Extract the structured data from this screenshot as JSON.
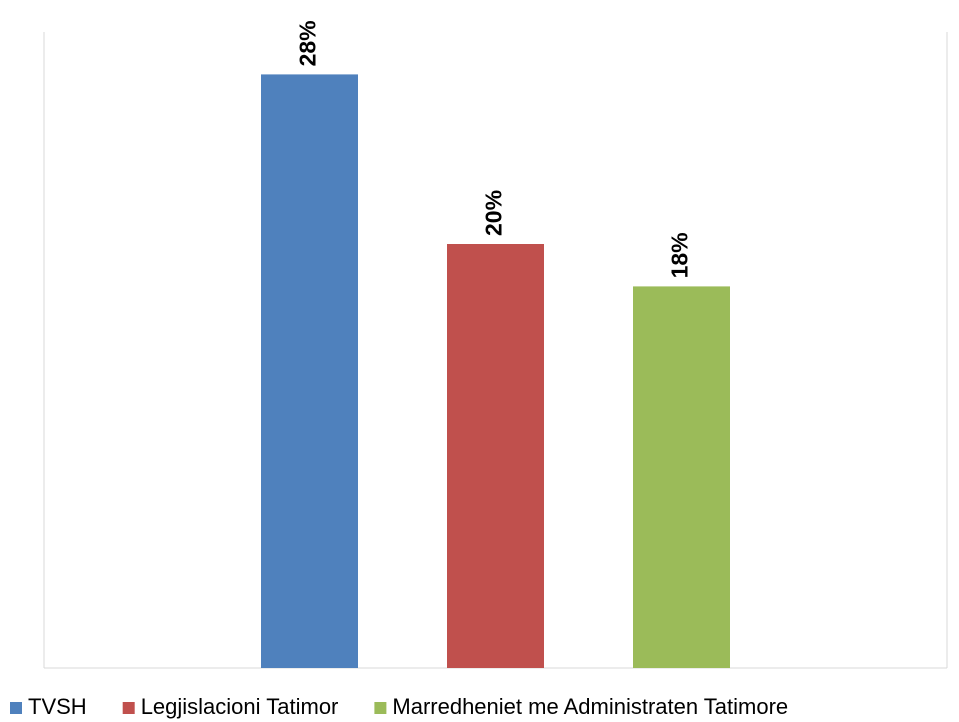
{
  "chart_data": {
    "type": "bar",
    "categories": [
      null
    ],
    "series": [
      {
        "name": "TVSH",
        "color": "#4f81bd",
        "values": [
          28
        ],
        "value_labels": [
          "28%"
        ]
      },
      {
        "name": "Legjislacioni Tatimor",
        "color": "#c0504d",
        "values": [
          20
        ],
        "value_labels": [
          "20%"
        ]
      },
      {
        "name": "Marredheniet me Administraten Tatimore",
        "color": "#9bbb59",
        "values": [
          18
        ],
        "value_labels": [
          "18%"
        ]
      }
    ],
    "ylim": [
      0,
      30
    ],
    "grid": false,
    "legend": "bottom"
  }
}
